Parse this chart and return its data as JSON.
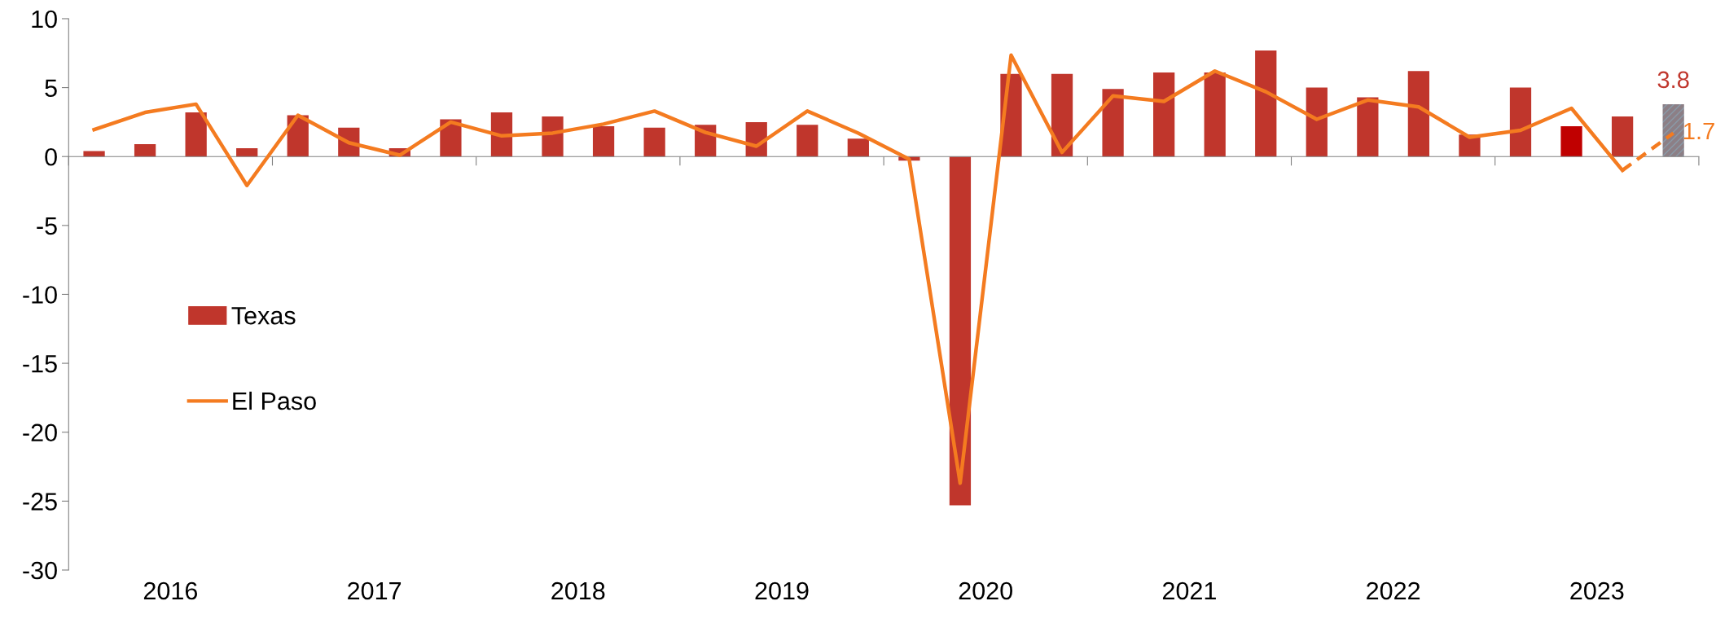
{
  "chart_data": {
    "type": "bar",
    "x": [
      2016.125,
      2016.375,
      2016.625,
      2016.875,
      2017.125,
      2017.375,
      2017.625,
      2017.875,
      2018.125,
      2018.375,
      2018.625,
      2018.875,
      2019.125,
      2019.375,
      2019.625,
      2019.875,
      2020.125,
      2020.375,
      2020.625,
      2020.875,
      2021.125,
      2021.375,
      2021.625,
      2021.875,
      2022.125,
      2022.375,
      2022.625,
      2022.875,
      2023.125,
      2023.375,
      2023.625,
      2023.875
    ],
    "series": [
      {
        "name": "Texas",
        "color": "#c0362c",
        "colors": [
          "#c0362c",
          "#c0362c",
          "#c0362c",
          "#c0362c",
          "#c0362c",
          "#c0362c",
          "#c0362c",
          "#c0362c",
          "#c0362c",
          "#c0362c",
          "#c0362c",
          "#c0362c",
          "#c0362c",
          "#c0362c",
          "#c0362c",
          "#c0362c",
          "#c0362c",
          "#c0362c",
          "#c0362c",
          "#c0362c",
          "#c0362c",
          "#c0362c",
          "#c0362c",
          "#c0362c",
          "#c0362c",
          "#c0362c",
          "#c0362c",
          "#c0362c",
          "#c0362c",
          "#c00000",
          "#c0362c",
          "#8c7f86"
        ],
        "values": [
          0.4,
          0.9,
          3.2,
          0.6,
          3.0,
          2.1,
          0.6,
          2.7,
          3.2,
          2.9,
          2.2,
          2.1,
          2.3,
          2.5,
          2.3,
          1.3,
          -0.3,
          -25.3,
          6.0,
          6.0,
          4.9,
          6.1,
          6.1,
          7.7,
          5.0,
          4.3,
          6.2,
          1.6,
          5.0,
          2.2,
          2.9,
          3.8
        ],
        "value_labels": [
          null,
          null,
          null,
          null,
          null,
          null,
          null,
          null,
          null,
          null,
          null,
          null,
          null,
          null,
          null,
          null,
          null,
          null,
          null,
          null,
          null,
          null,
          null,
          null,
          null,
          null,
          null,
          null,
          null,
          null,
          null,
          "3.8"
        ]
      },
      {
        "name": "El Paso",
        "type": "line",
        "color": "#f47b20",
        "line_style": "solid",
        "values": [
          1.95,
          3.2,
          3.8,
          -2.1,
          3.0,
          1.0,
          0.1,
          2.5,
          1.5,
          1.7,
          2.35,
          3.3,
          1.75,
          0.75,
          3.3,
          1.7,
          -0.2,
          -23.7,
          7.35,
          0.3,
          4.4,
          4.0,
          6.2,
          4.7,
          2.7,
          4.1,
          3.6,
          1.4,
          1.9,
          3.5,
          -1.0,
          null
        ]
      },
      {
        "type": "line",
        "color": "#f47b20",
        "line_style": "dashed",
        "values": [
          null,
          null,
          null,
          null,
          null,
          null,
          null,
          null,
          null,
          null,
          null,
          null,
          null,
          null,
          null,
          null,
          null,
          null,
          null,
          null,
          null,
          null,
          null,
          null,
          null,
          null,
          null,
          null,
          null,
          null,
          -1.0,
          1.7
        ],
        "value_labels": [
          null,
          null,
          null,
          null,
          null,
          null,
          null,
          null,
          null,
          null,
          null,
          null,
          null,
          null,
          null,
          null,
          null,
          null,
          null,
          null,
          null,
          null,
          null,
          null,
          null,
          null,
          null,
          null,
          null,
          null,
          null,
          "1.7"
        ]
      }
    ],
    "xlim": [
      2016,
      2024
    ],
    "xticks": [
      {
        "value": 2016,
        "label": null
      },
      {
        "value": 2017,
        "label": null
      },
      {
        "value": 2018,
        "label": null
      },
      {
        "value": 2019,
        "label": null
      },
      {
        "value": 2020,
        "label": null
      },
      {
        "value": 2021,
        "label": null
      },
      {
        "value": 2022,
        "label": null
      },
      {
        "value": 2023,
        "label": null
      },
      {
        "value": 2024,
        "label": null
      },
      {
        "value": 2016.5,
        "label": "2016"
      },
      {
        "value": 2017.5,
        "label": "2017"
      },
      {
        "value": 2018.5,
        "label": "2018"
      },
      {
        "value": 2019.5,
        "label": "2019"
      },
      {
        "value": 2020.5,
        "label": "2020"
      },
      {
        "value": 2021.5,
        "label": "2021"
      },
      {
        "value": 2022.5,
        "label": "2022"
      },
      {
        "value": 2023.5,
        "label": "2023"
      }
    ],
    "ylim": [
      -30,
      10
    ],
    "yticks": [
      -30,
      -25,
      -20,
      -15,
      -10,
      -5,
      0,
      5,
      10
    ],
    "legend": "left"
  }
}
